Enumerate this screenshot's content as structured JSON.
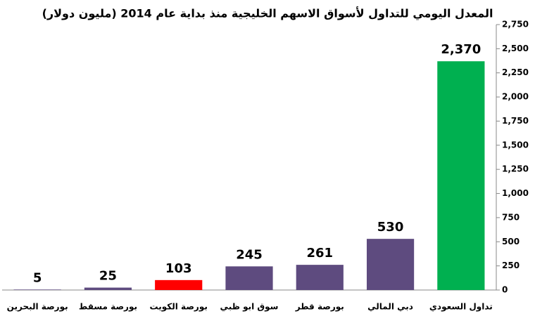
{
  "chart_data": {
    "type": "bar",
    "title": "المعدل اليومي للتداول لأسواق الاسهم الخليجية منذ بداية عام 2014 (مليون دولار)",
    "categories": [
      "بورصة البحرين",
      "بورصة مسقط",
      "بورصة الكويت",
      "سوق ابو ظبي",
      "بورصة قطر",
      "دبي المالي",
      "تداول السعودي"
    ],
    "values": [
      5,
      25,
      103,
      245,
      261,
      530,
      2370
    ],
    "value_labels": [
      "5",
      "25",
      "103",
      "245",
      "261",
      "530",
      "2,370"
    ],
    "colors": [
      "#5e4b7f",
      "#5e4b7f",
      "#ff0000",
      "#5e4b7f",
      "#5e4b7f",
      "#5e4b7f",
      "#00b050"
    ],
    "ylim": [
      0,
      2750
    ],
    "yticks": [
      0,
      250,
      500,
      750,
      {
        "value": 1000,
        "label": "1,000"
      },
      {
        "value": 1250,
        "label": "1,250"
      },
      {
        "value": 1500,
        "label": "1,500"
      },
      {
        "value": 1750,
        "label": "1,750"
      },
      {
        "value": 2000,
        "label": "2,000"
      },
      {
        "value": 2250,
        "label": "2,250"
      },
      {
        "value": 2500,
        "label": "2,500"
      },
      {
        "value": 2750,
        "label": "2,750"
      }
    ],
    "grid": false
  }
}
